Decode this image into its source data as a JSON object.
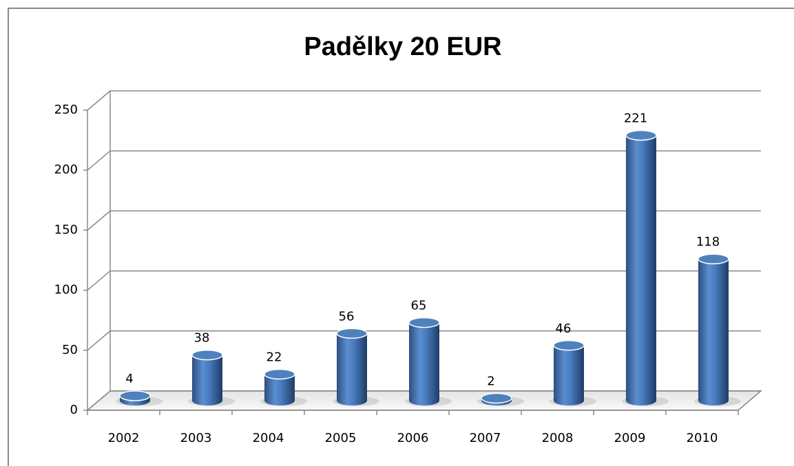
{
  "chart_data": {
    "type": "bar",
    "title": "Padělky 20 EUR",
    "categories": [
      "2002",
      "2003",
      "2004",
      "2005",
      "2006",
      "2007",
      "2008",
      "2009",
      "2010"
    ],
    "values": [
      4,
      38,
      22,
      56,
      65,
      2,
      46,
      221,
      118
    ],
    "color": "#4f81bd",
    "ylim": [
      0,
      250
    ],
    "yticks": [
      0,
      50,
      100,
      150,
      200,
      250
    ],
    "grid": true
  }
}
